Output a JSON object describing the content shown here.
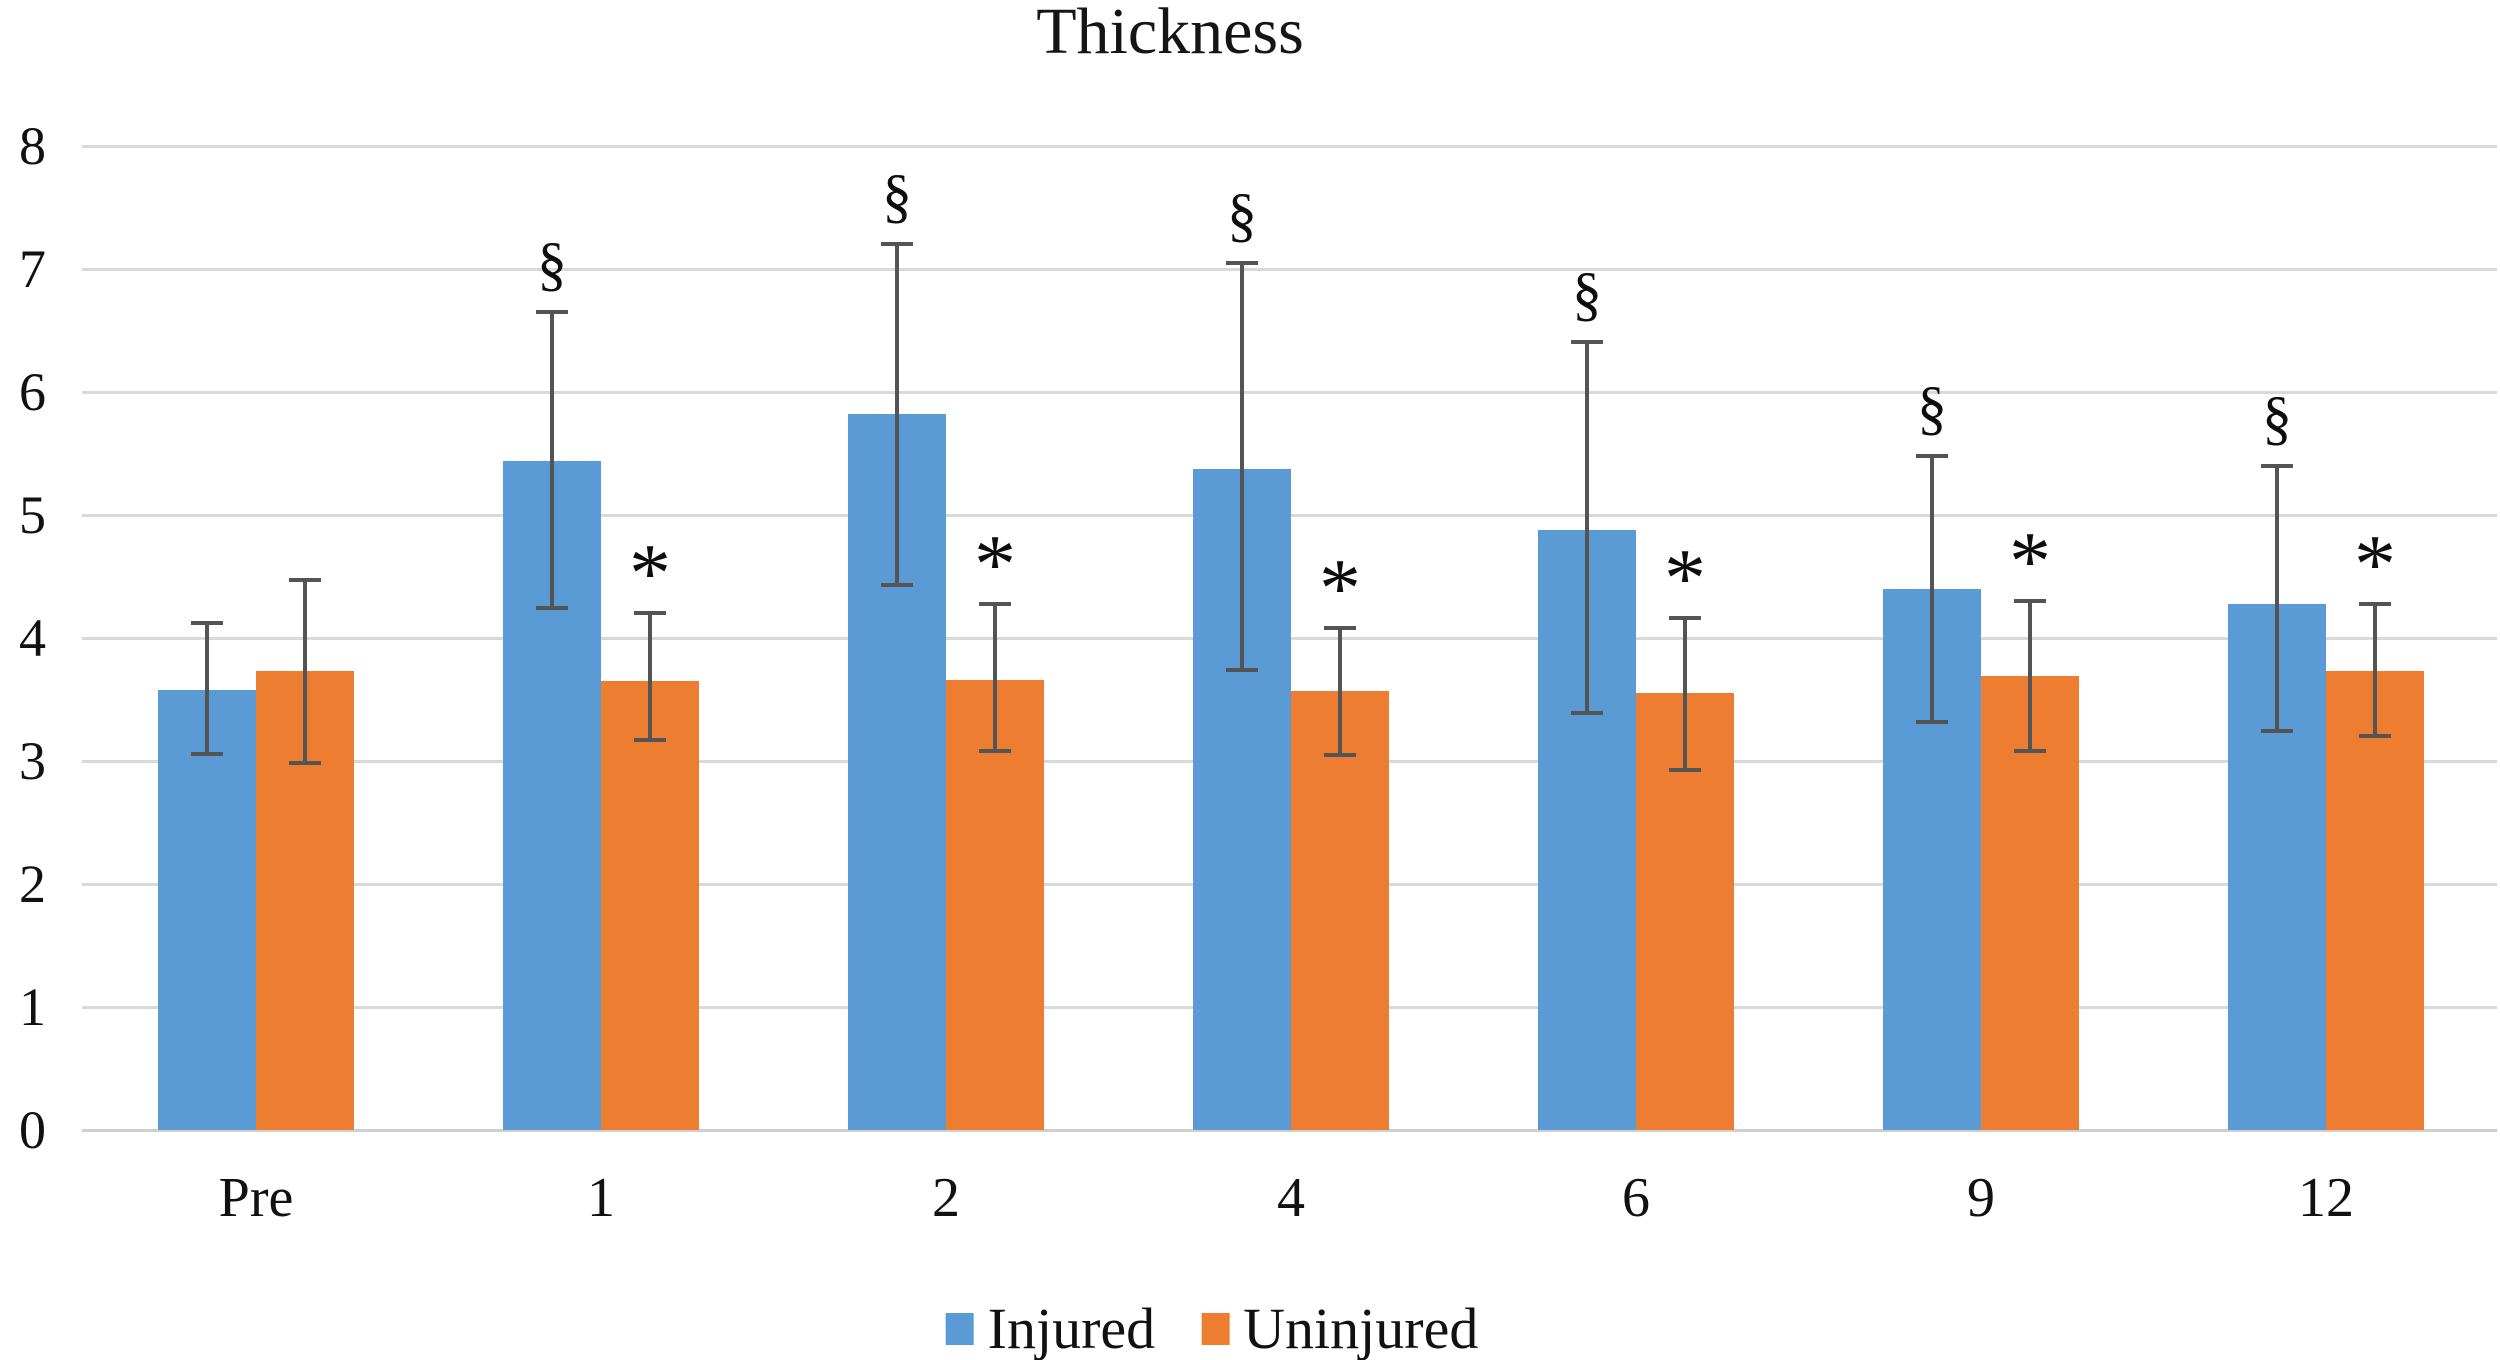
{
  "chart_data": {
    "type": "bar",
    "title": "Thickness",
    "categories": [
      "Pre",
      "1",
      "2",
      "4",
      "6",
      "9",
      "12"
    ],
    "series": [
      {
        "name": "Injured",
        "color": "#5B9BD5",
        "values": [
          3.58,
          5.44,
          5.82,
          5.37,
          4.88,
          4.4,
          4.28
        ],
        "error_high": [
          4.12,
          6.65,
          7.2,
          7.05,
          6.41,
          5.48,
          5.4
        ],
        "error_low": [
          3.06,
          4.24,
          4.43,
          3.74,
          3.39,
          3.32,
          3.24
        ],
        "annotations": [
          "",
          "§",
          "§",
          "§",
          "§",
          "§",
          "§"
        ]
      },
      {
        "name": "Uninjured",
        "color": "#ED7D31",
        "values": [
          3.73,
          3.65,
          3.66,
          3.57,
          3.55,
          3.69,
          3.73
        ],
        "error_high": [
          4.47,
          4.2,
          4.28,
          4.08,
          4.16,
          4.3,
          4.28
        ],
        "error_low": [
          2.98,
          3.17,
          3.08,
          3.05,
          2.93,
          3.08,
          3.2
        ],
        "annotations": [
          "",
          "*",
          "*",
          "*",
          "*",
          "*",
          "*"
        ]
      }
    ],
    "ylabel": "",
    "xlabel": "",
    "ylim": [
      0,
      8
    ],
    "ytick_step": 1,
    "yticks": [
      "0",
      "1",
      "2",
      "3",
      "4",
      "5",
      "6",
      "7",
      "8"
    ],
    "grid": true,
    "legend_position": "bottom",
    "colors": {
      "injured": "#5B9BD5",
      "uninjured": "#ED7D31",
      "error_bar": "#545454",
      "gridline": "#D9D9D9",
      "baseline": "#CFCFCF",
      "text": "#1a1a1a"
    }
  }
}
